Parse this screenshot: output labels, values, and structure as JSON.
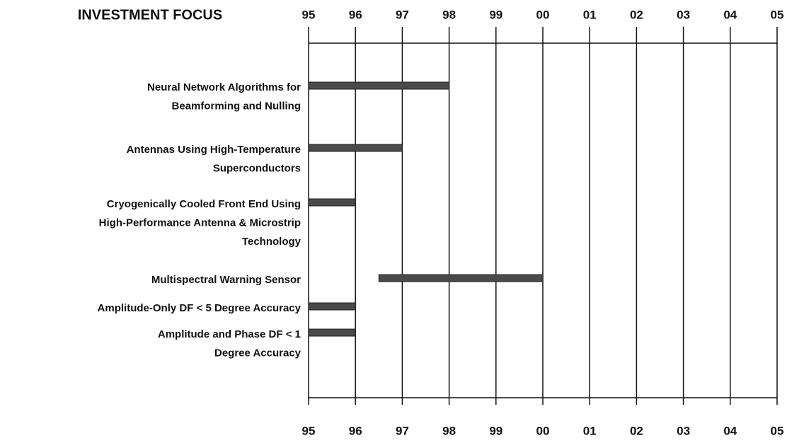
{
  "chart_data": {
    "type": "gantt",
    "title": "INVESTMENT FOCUS",
    "xlim": [
      1995,
      2005
    ],
    "xticks": [
      {
        "value": 1995,
        "label": "95"
      },
      {
        "value": 1996,
        "label": "96"
      },
      {
        "value": 1997,
        "label": "97"
      },
      {
        "value": 1998,
        "label": "98"
      },
      {
        "value": 1999,
        "label": "99"
      },
      {
        "value": 2000,
        "label": "00"
      },
      {
        "value": 2001,
        "label": "01"
      },
      {
        "value": 2002,
        "label": "02"
      },
      {
        "value": 2003,
        "label": "03"
      },
      {
        "value": 2004,
        "label": "04"
      },
      {
        "value": 2005,
        "label": "05"
      }
    ],
    "grid": true,
    "color": "#4a4a4a",
    "tasks": [
      {
        "label": [
          "Neural Network Algorithms for",
          "Beamforming and Nulling"
        ],
        "start": 1995,
        "end": 1998
      },
      {
        "label": [
          "Antennas Using High-Temperature",
          "Superconductors"
        ],
        "start": 1995,
        "end": 1997
      },
      {
        "label": [
          "Cryogenically Cooled Front End Using",
          "High-Performance Antenna & Microstrip",
          "Technology"
        ],
        "start": 1995,
        "end": 1996
      },
      {
        "label": [
          "Multispectral Warning Sensor"
        ],
        "start": 1996.5,
        "end": 2000
      },
      {
        "label": [
          "Amplitude-Only DF < 5 Degree Accuracy"
        ],
        "start": 1995,
        "end": 1996
      },
      {
        "label": [
          "Amplitude and Phase DF < 1",
          "Degree Accuracy"
        ],
        "start": 1995,
        "end": 1996
      }
    ]
  }
}
